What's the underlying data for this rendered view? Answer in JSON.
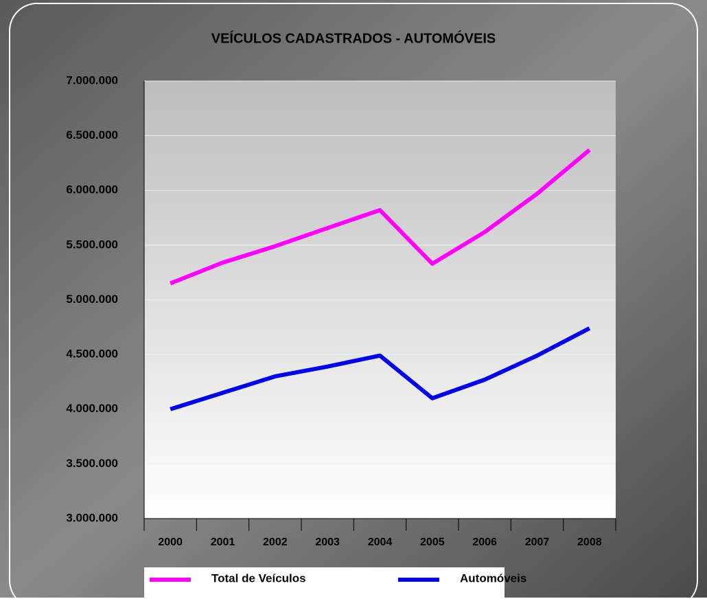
{
  "chart_data": {
    "type": "line",
    "title": "VEÍCULOS CADASTRADOS - AUTOMÓVEIS",
    "categories": [
      "2000",
      "2001",
      "2002",
      "2003",
      "2004",
      "2005",
      "2006",
      "2007",
      "2008"
    ],
    "series": [
      {
        "name": "Total  de Veículos",
        "color": "#ff00ff",
        "values": [
          5150000,
          5340000,
          5490000,
          5656000,
          5820000,
          5330000,
          5620000,
          5970000,
          6370000
        ]
      },
      {
        "name": "Automóveis",
        "color": "#0000e6",
        "values": [
          4000000,
          4150000,
          4300000,
          4390000,
          4490000,
          4100000,
          4270000,
          4490000,
          4740000
        ]
      }
    ],
    "ylim": [
      3000000,
      7000000
    ],
    "yticks": [
      {
        "value": 3000000,
        "label": "3.000.000"
      },
      {
        "value": 3500000,
        "label": "3.500.000"
      },
      {
        "value": 4000000,
        "label": "4.000.000"
      },
      {
        "value": 4500000,
        "label": "4.500.000"
      },
      {
        "value": 5000000,
        "label": "5.000.000"
      },
      {
        "value": 5500000,
        "label": "5.500.000"
      },
      {
        "value": 6000000,
        "label": "6.000.000"
      },
      {
        "value": 6500000,
        "label": "6.500.000"
      },
      {
        "value": 7000000,
        "label": "7.000.000"
      }
    ],
    "grid": true
  }
}
